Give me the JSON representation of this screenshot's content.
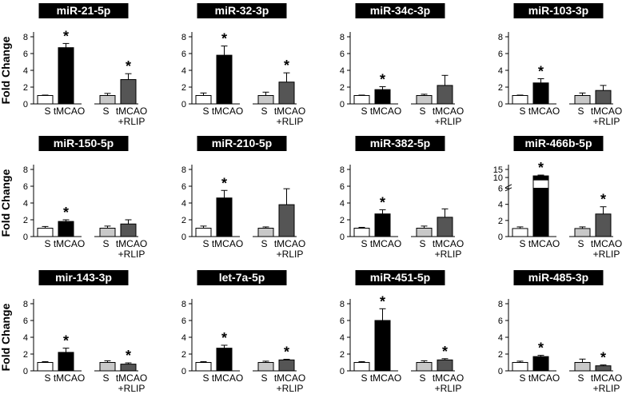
{
  "figure": {
    "ylabel": "Fold Change"
  },
  "colors": {
    "sham": "#ffffff",
    "tmcao": "#000000",
    "groupA": "#c8c8c8",
    "groupB": "#555555",
    "title_bg": "#000000",
    "title_fg": "#ffffff",
    "axis": "#000000"
  },
  "chart_data": [
    {
      "type": "bar",
      "title": "miR-21-5p",
      "ylabel": "Fold Change",
      "ylim": [
        0,
        8
      ],
      "yticks": [
        0,
        2,
        4,
        6,
        8
      ],
      "groups": [
        {
          "label": "S",
          "bars": [
            {
              "value": 1.0,
              "error": 0.05,
              "color": "sham"
            },
            {
              "value": 6.7,
              "error": 0.5,
              "color": "tmcao",
              "star": true
            }
          ]
        },
        {
          "label": "tMCAO",
          "bars": [
            {
              "value": 1.0,
              "error": 0.25,
              "color": "groupA"
            },
            {
              "value": 2.9,
              "error": 0.7,
              "color": "groupB",
              "star": true
            }
          ]
        }
      ],
      "sublabels": [
        "tMCAO",
        "+RLIP"
      ]
    },
    {
      "type": "bar",
      "title": "miR-32-3p",
      "ylabel": "",
      "ylim": [
        0,
        8
      ],
      "yticks": [
        0,
        2,
        4,
        6,
        8
      ],
      "groups": [
        {
          "label": "S",
          "bars": [
            {
              "value": 1.0,
              "error": 0.3,
              "color": "sham"
            },
            {
              "value": 5.8,
              "error": 1.1,
              "color": "tmcao",
              "star": true
            }
          ]
        },
        {
          "label": "tMCAO",
          "bars": [
            {
              "value": 1.0,
              "error": 0.4,
              "color": "groupA"
            },
            {
              "value": 2.6,
              "error": 1.1,
              "color": "groupB",
              "star": true
            }
          ]
        }
      ],
      "sublabels": [
        "tMCAO",
        "+RLIP"
      ]
    },
    {
      "type": "bar",
      "title": "miR-34c-3p",
      "ylabel": "",
      "ylim": [
        0,
        8
      ],
      "yticks": [
        0,
        2,
        4,
        6,
        8
      ],
      "groups": [
        {
          "label": "S",
          "bars": [
            {
              "value": 1.0,
              "error": 0.05,
              "color": "sham"
            },
            {
              "value": 1.7,
              "error": 0.35,
              "color": "tmcao",
              "star": true
            }
          ]
        },
        {
          "label": "tMCAO",
          "bars": [
            {
              "value": 1.0,
              "error": 0.15,
              "color": "groupA"
            },
            {
              "value": 2.2,
              "error": 1.2,
              "color": "groupB",
              "star": false
            }
          ]
        }
      ],
      "sublabels": [
        "tMCAO",
        "+RLIP"
      ]
    },
    {
      "type": "bar",
      "title": "miR-103-3p",
      "ylabel": "",
      "ylim": [
        0,
        8
      ],
      "yticks": [
        0,
        2,
        4,
        6,
        8
      ],
      "groups": [
        {
          "label": "S",
          "bars": [
            {
              "value": 1.0,
              "error": 0.05,
              "color": "sham"
            },
            {
              "value": 2.5,
              "error": 0.5,
              "color": "tmcao",
              "star": true
            }
          ]
        },
        {
          "label": "tMCAO",
          "bars": [
            {
              "value": 1.0,
              "error": 0.3,
              "color": "groupA"
            },
            {
              "value": 1.6,
              "error": 0.6,
              "color": "groupB",
              "star": false
            }
          ]
        }
      ],
      "sublabels": [
        "tMCAO",
        "+RLIP"
      ]
    },
    {
      "type": "bar",
      "title": "miR-150-5p",
      "ylabel": "Fold Change",
      "ylim": [
        0,
        8
      ],
      "yticks": [
        0,
        2,
        4,
        6,
        8
      ],
      "groups": [
        {
          "label": "S",
          "bars": [
            {
              "value": 1.0,
              "error": 0.2,
              "color": "sham"
            },
            {
              "value": 1.8,
              "error": 0.2,
              "color": "tmcao",
              "star": true
            }
          ]
        },
        {
          "label": "tMCAO",
          "bars": [
            {
              "value": 1.0,
              "error": 0.25,
              "color": "groupA"
            },
            {
              "value": 1.5,
              "error": 0.5,
              "color": "groupB",
              "star": false
            }
          ]
        }
      ],
      "sublabels": [
        "tMCAO",
        "+RLIP"
      ]
    },
    {
      "type": "bar",
      "title": "miR-210-5p",
      "ylabel": "",
      "ylim": [
        0,
        8
      ],
      "yticks": [
        0,
        2,
        4,
        6,
        8
      ],
      "groups": [
        {
          "label": "S",
          "bars": [
            {
              "value": 1.0,
              "error": 0.25,
              "color": "sham"
            },
            {
              "value": 4.6,
              "error": 0.9,
              "color": "tmcao",
              "star": true
            }
          ]
        },
        {
          "label": "tMCAO",
          "bars": [
            {
              "value": 1.0,
              "error": 0.15,
              "color": "groupA"
            },
            {
              "value": 3.8,
              "error": 1.9,
              "color": "groupB",
              "star": false
            }
          ]
        }
      ],
      "sublabels": [
        "tMCAO",
        "+RLIP"
      ]
    },
    {
      "type": "bar",
      "title": "miR-382-5p",
      "ylabel": "",
      "ylim": [
        0,
        8
      ],
      "yticks": [
        0,
        2,
        4,
        6,
        8
      ],
      "groups": [
        {
          "label": "S",
          "bars": [
            {
              "value": 1.0,
              "error": 0.1,
              "color": "sham"
            },
            {
              "value": 2.7,
              "error": 0.5,
              "color": "tmcao",
              "star": true
            }
          ]
        },
        {
          "label": "tMCAO",
          "bars": [
            {
              "value": 1.0,
              "error": 0.25,
              "color": "groupA"
            },
            {
              "value": 2.3,
              "error": 1.0,
              "color": "groupB",
              "star": false
            }
          ]
        }
      ],
      "sublabels": [
        "tMCAO",
        "+RLIP"
      ]
    },
    {
      "type": "bar",
      "title": "miR-466b-5p",
      "ylabel": "",
      "ylim": [
        0,
        15
      ],
      "yticks": [
        0,
        2,
        4,
        6,
        10,
        15
      ],
      "axis_break": true,
      "groups": [
        {
          "label": "S",
          "bars": [
            {
              "value": 1.0,
              "error": 0.2,
              "color": "sham"
            },
            {
              "value": 11.0,
              "error": 0.5,
              "color": "tmcao",
              "star": true,
              "segmented": true
            }
          ]
        },
        {
          "label": "tMCAO",
          "bars": [
            {
              "value": 1.0,
              "error": 0.2,
              "color": "groupA"
            },
            {
              "value": 2.8,
              "error": 0.9,
              "color": "groupB",
              "star": true
            }
          ]
        }
      ],
      "sublabels": [
        "tMCAO",
        "+RLIP"
      ]
    },
    {
      "type": "bar",
      "title": "mir-143-3p",
      "ylabel": "Fold Change",
      "ylim": [
        0,
        8
      ],
      "yticks": [
        0,
        2,
        4,
        6,
        8
      ],
      "groups": [
        {
          "label": "S",
          "bars": [
            {
              "value": 1.0,
              "error": 0.1,
              "color": "sham"
            },
            {
              "value": 2.2,
              "error": 0.5,
              "color": "tmcao",
              "star": true
            }
          ]
        },
        {
          "label": "tMCAO",
          "bars": [
            {
              "value": 1.0,
              "error": 0.2,
              "color": "groupA"
            },
            {
              "value": 0.8,
              "error": 0.15,
              "color": "groupB",
              "star": true
            }
          ]
        }
      ],
      "sublabels": [
        "tMCAO",
        "+RLIP"
      ]
    },
    {
      "type": "bar",
      "title": "let-7a-5p",
      "ylabel": "",
      "ylim": [
        0,
        8
      ],
      "yticks": [
        0,
        2,
        4,
        6,
        8
      ],
      "groups": [
        {
          "label": "S",
          "bars": [
            {
              "value": 1.0,
              "error": 0.1,
              "color": "sham"
            },
            {
              "value": 2.7,
              "error": 0.35,
              "color": "tmcao",
              "star": true
            }
          ]
        },
        {
          "label": "tMCAO",
          "bars": [
            {
              "value": 1.0,
              "error": 0.15,
              "color": "groupA"
            },
            {
              "value": 1.3,
              "error": 0.08,
              "color": "groupB",
              "star": true
            }
          ]
        }
      ],
      "sublabels": [
        "tMCAO",
        "+RLIP"
      ]
    },
    {
      "type": "bar",
      "title": "miR-451-5p",
      "ylabel": "",
      "ylim": [
        0,
        8
      ],
      "yticks": [
        0,
        2,
        4,
        6,
        8
      ],
      "groups": [
        {
          "label": "S",
          "bars": [
            {
              "value": 1.0,
              "error": 0.1,
              "color": "sham"
            },
            {
              "value": 6.0,
              "error": 1.4,
              "color": "tmcao",
              "star": true
            }
          ]
        },
        {
          "label": "tMCAO",
          "bars": [
            {
              "value": 1.0,
              "error": 0.2,
              "color": "groupA"
            },
            {
              "value": 1.3,
              "error": 0.15,
              "color": "groupB",
              "star": true
            }
          ]
        }
      ],
      "sublabels": [
        "tMCAO",
        "+RLIP"
      ]
    },
    {
      "type": "bar",
      "title": "miR-485-3p",
      "ylabel": "",
      "ylim": [
        0,
        8
      ],
      "yticks": [
        0,
        2,
        4,
        6,
        8
      ],
      "groups": [
        {
          "label": "S",
          "bars": [
            {
              "value": 1.0,
              "error": 0.15,
              "color": "sham"
            },
            {
              "value": 1.7,
              "error": 0.15,
              "color": "tmcao",
              "star": true
            }
          ]
        },
        {
          "label": "tMCAO",
          "bars": [
            {
              "value": 1.0,
              "error": 0.4,
              "color": "groupA"
            },
            {
              "value": 0.6,
              "error": 0.1,
              "color": "groupB",
              "star": true
            }
          ]
        }
      ],
      "sublabels": [
        "tMCAO",
        "+RLIP"
      ]
    }
  ]
}
